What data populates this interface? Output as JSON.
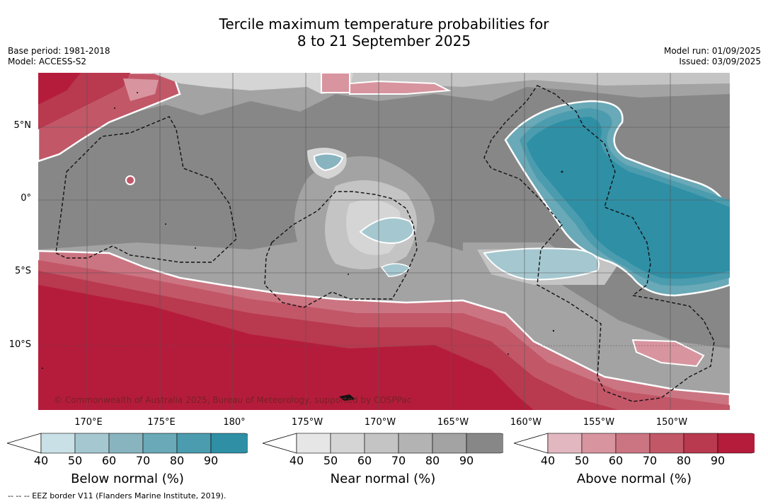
{
  "title": {
    "line1": "Tercile maximum temperature probabilities for",
    "line2": "8 to 21 September 2025"
  },
  "header": {
    "base_period": "Base period: 1981-2018",
    "model": "Model: ACCESS-S2",
    "model_run": "Model run: 01/09/2025",
    "issued": "Issued: 03/09/2025"
  },
  "map": {
    "lat_labels": [
      "5°N",
      "0°",
      "5°S",
      "10°S"
    ],
    "lon_labels": [
      "170°E",
      "175°E",
      "180°",
      "175°W",
      "170°W",
      "165°W",
      "160°W",
      "155°W",
      "150°W"
    ],
    "credit": "© Commonwealth of Australia 2025, Bureau of Meteorology, supported by COSPPac",
    "colors": {
      "near_normal_base": "#878787",
      "below_normal_strong": "#2e8fa5",
      "above_normal_strong": "#b51c3b",
      "grid": "#555555"
    }
  },
  "colorbars": [
    {
      "title": "Below normal (%)",
      "ticks": [
        "40",
        "50",
        "60",
        "70",
        "80",
        "90"
      ],
      "colors": [
        "#c8e0e6",
        "#a5c8d0",
        "#88b4c0",
        "#6aa9b7",
        "#4b9cae",
        "#2e8fa5"
      ]
    },
    {
      "title": "Near normal (%)",
      "ticks": [
        "40",
        "50",
        "60",
        "70",
        "80",
        "90"
      ],
      "colors": [
        "#e6e6e6",
        "#d5d5d5",
        "#c4c4c4",
        "#b3b3b3",
        "#a3a3a3",
        "#878787"
      ]
    },
    {
      "title": "Above normal (%)",
      "ticks": [
        "40",
        "50",
        "60",
        "70",
        "80",
        "90"
      ],
      "colors": [
        "#e2b7bf",
        "#d8959f",
        "#cc7582",
        "#c25768",
        "#b9394f",
        "#b51c3b"
      ]
    }
  ],
  "footer": {
    "eez_note": "--  --  -- EEZ border V11 (Flanders Marine Institute, 2019)."
  }
}
